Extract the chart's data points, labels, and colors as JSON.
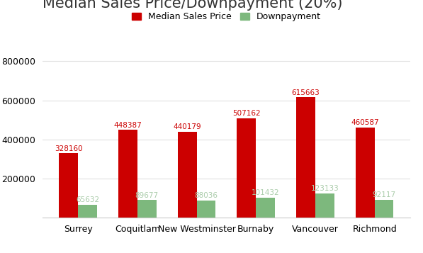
{
  "title": "Median Sales Price/Downpayment (20%)",
  "categories": [
    "Surrey",
    "Coquitlam",
    "New Westminster",
    "Burnaby",
    "Vancouver",
    "Richmond"
  ],
  "median_sales": [
    328160,
    448387,
    440179,
    507162,
    615663,
    460587
  ],
  "downpayment": [
    65632,
    89677,
    88036,
    101432,
    123133,
    92117
  ],
  "bar_color_red": "#cc0000",
  "bar_color_green": "#7db87d",
  "legend_label_red": "Median Sales Price",
  "legend_label_green": "Downpayment",
  "ylim": [
    0,
    880000
  ],
  "yticks": [
    0,
    200000,
    400000,
    600000,
    800000
  ],
  "background_color": "#ffffff",
  "title_fontsize": 15,
  "bar_width": 0.32,
  "label_fontsize": 7.5,
  "annotation_color_red": "#cc0000",
  "annotation_color_green": "#aaccaa",
  "tick_fontsize": 9,
  "grid_color": "#e0e0e0"
}
